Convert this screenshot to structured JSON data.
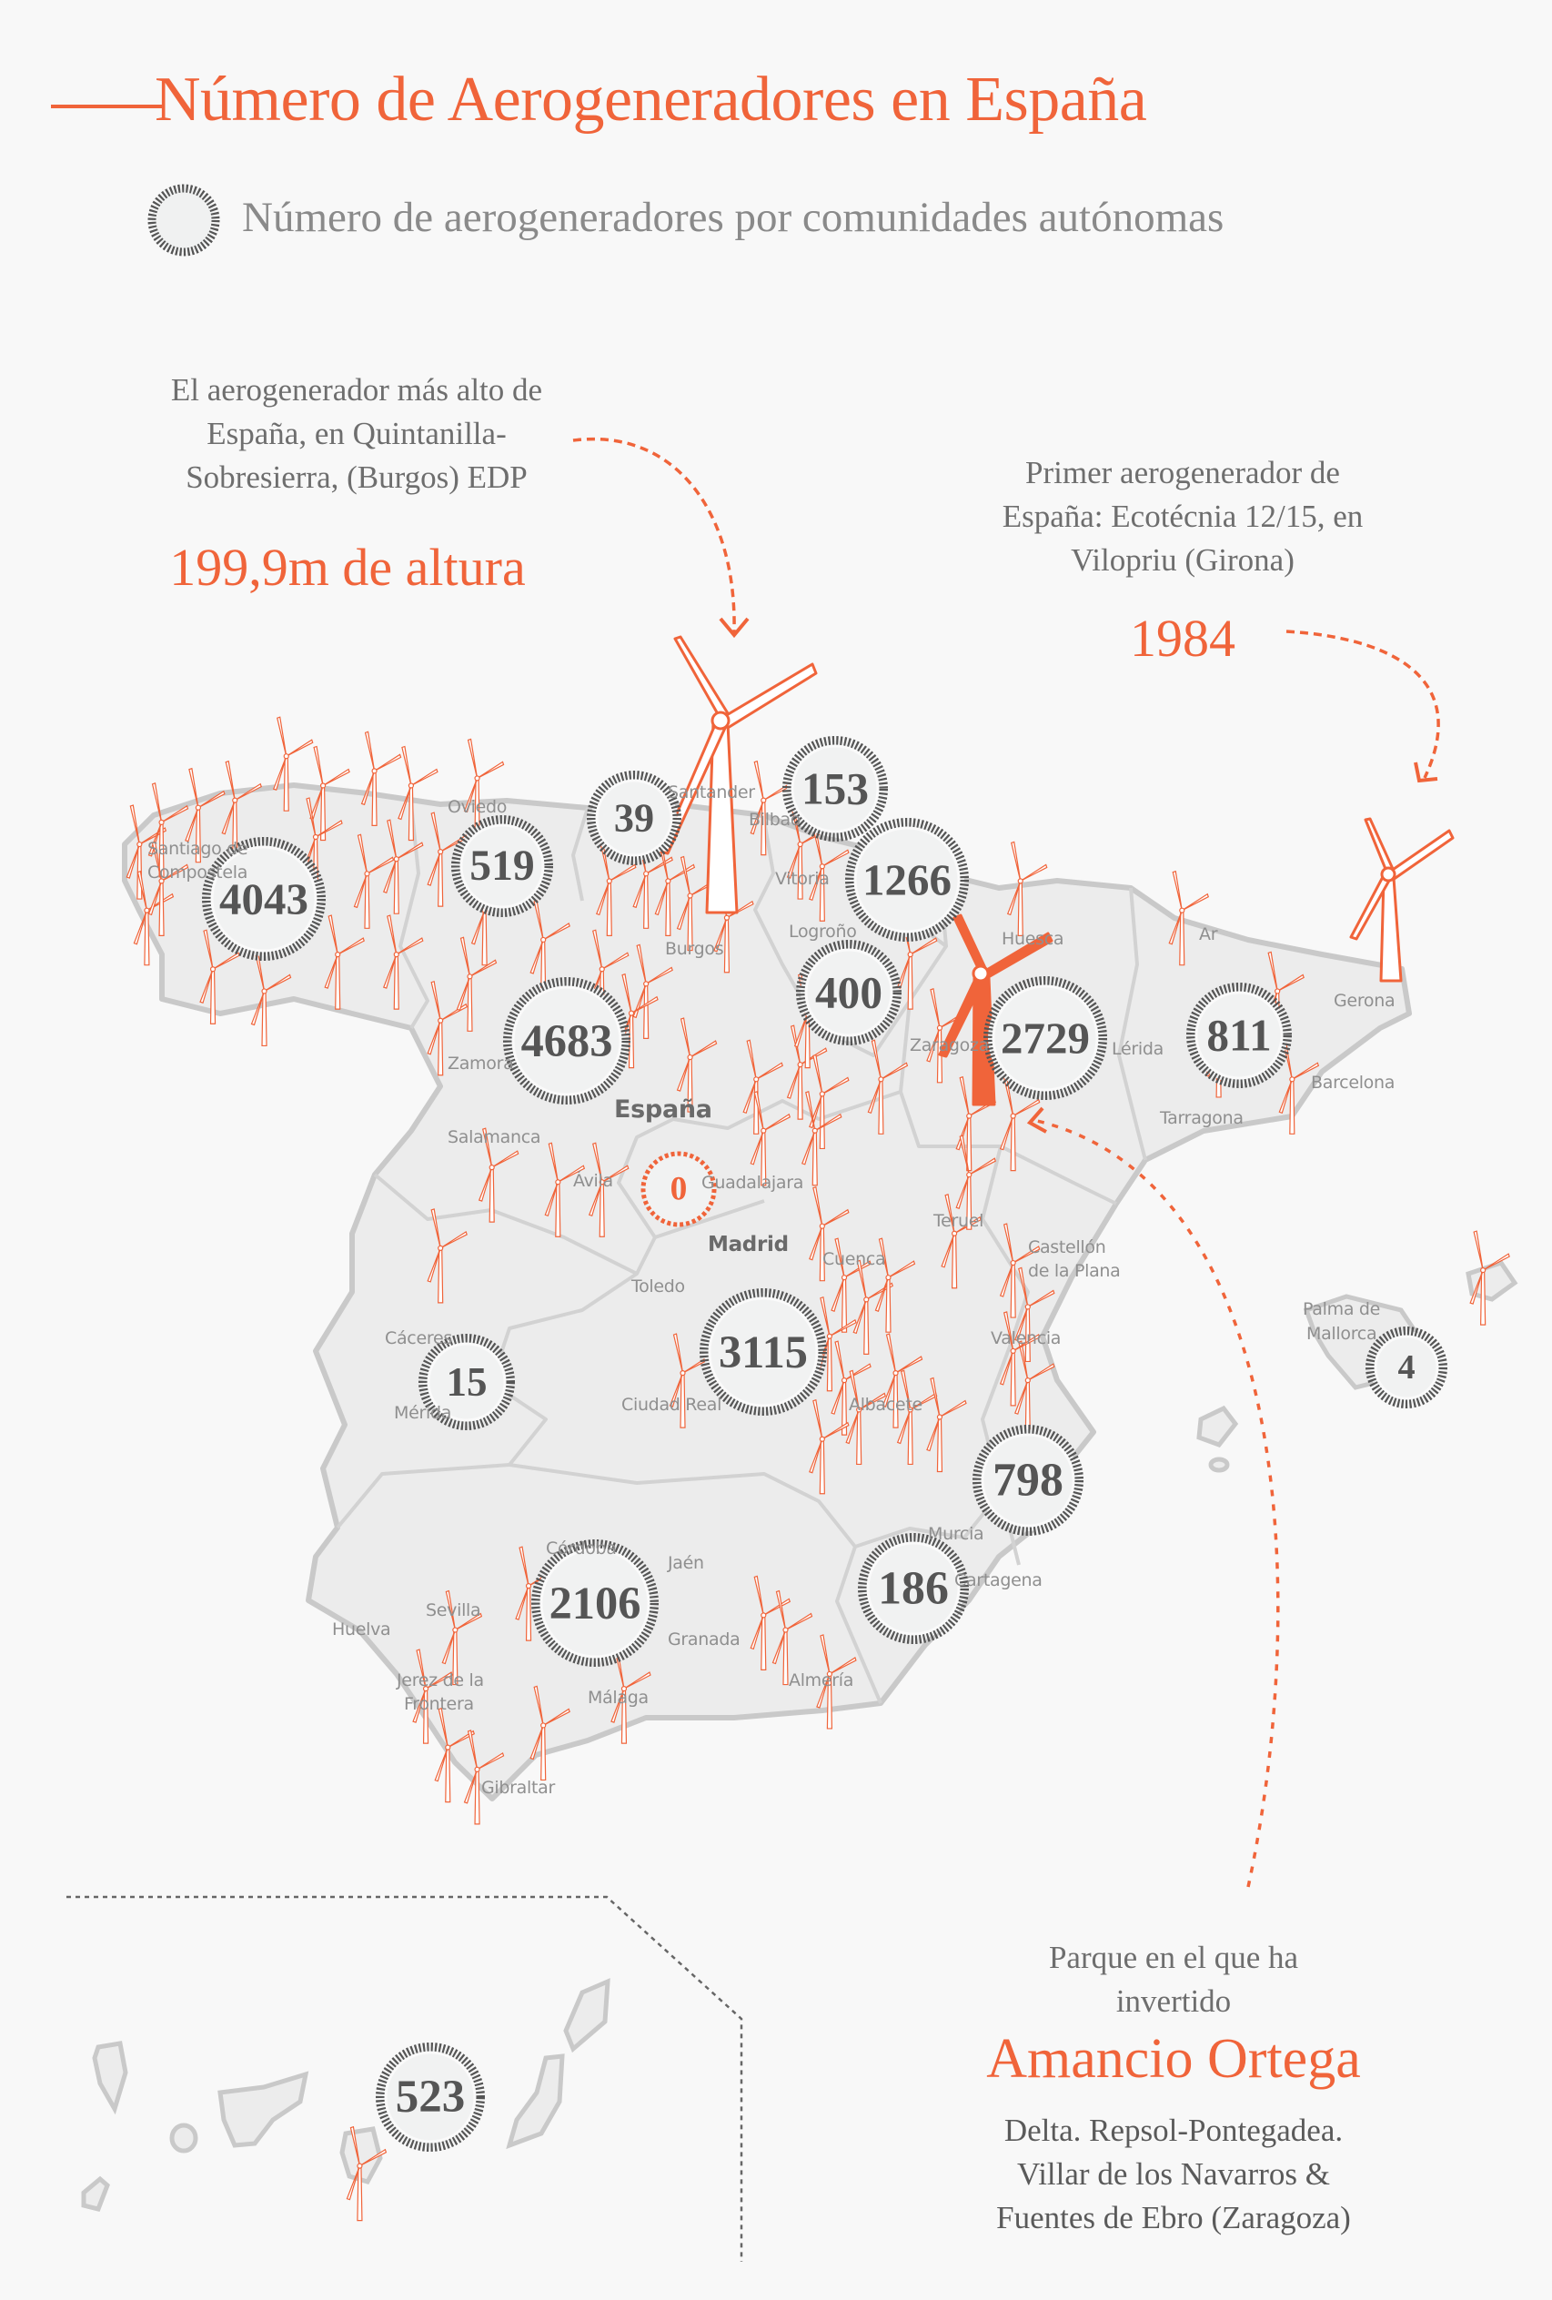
{
  "header": {
    "title": "Número de Aerogeneradores en España",
    "legend_label": "Número de aerogeneradores por comunidades autónomas",
    "legend_icon": "dashed-ring-icon"
  },
  "annotations": {
    "tallest": {
      "lines": [
        "El aerogenerador más alto de",
        "España, en Quintanilla-",
        "Sobresierra, (Burgos) EDP"
      ],
      "highlight": "199,9m de altura"
    },
    "first": {
      "lines": [
        "Primer aerogenerador de",
        "España: Ecotécnia 12/15, en",
        "Vilopriu (Girona)"
      ],
      "highlight": "1984"
    },
    "amancio": {
      "lines": [
        "Parque en el que ha",
        "invertido"
      ],
      "highlight": "Amancio Ortega",
      "detail": [
        "Delta. Repsol-Pontegadea.",
        "Villar de los Navarros &",
        "Fuentes de Ebro (Zaragoza)"
      ]
    }
  },
  "map": {
    "regions": [
      {
        "value": "4043"
      },
      {
        "value": "519"
      },
      {
        "value": "39"
      },
      {
        "value": "153"
      },
      {
        "value": "1266"
      },
      {
        "value": "400"
      },
      {
        "value": "4683"
      },
      {
        "value": "2729"
      },
      {
        "value": "811"
      },
      {
        "value": "0"
      },
      {
        "value": "15"
      },
      {
        "value": "3115"
      },
      {
        "value": "4"
      },
      {
        "value": "798"
      },
      {
        "value": "186"
      },
      {
        "value": "2106"
      },
      {
        "value": "523"
      }
    ],
    "cities": {
      "santiago1": "Santiago de",
      "santiago2": "Compostela",
      "oviedo": "Oviedo",
      "santander": "Santander",
      "bilbao": "Bilbao",
      "vitoria": "Vitoria",
      "logrono": "Logroño",
      "burgos": "Burgos",
      "huesca": "Huesca",
      "zaragoza": "Zaragoza",
      "lerida": "Lérida",
      "gerona": "Gerona",
      "barcelona": "Barcelona",
      "tarragona": "Tarragona",
      "andorra": "Ar",
      "zamora": "Zamora",
      "salamanca": "Salamanca",
      "espana": "España",
      "avila": "Ávila",
      "guadalajara": "Guadalajara",
      "madrid": "Madrid",
      "cuenca": "Cuenca",
      "teruel": "Teruel",
      "castellon1": "Castellón",
      "castellon2": "de la Plana",
      "toledo": "Toledo",
      "caceres": "Cáceres",
      "merida": "Mérida",
      "ciudadreal": "Ciudad Real",
      "valencia": "Valencia",
      "albacete": "Albacete",
      "palma1": "Palma de",
      "palma2": "Mallorca",
      "murcia": "Murcia",
      "cartagena": "Cartagena",
      "cordoba": "Córdoba",
      "jaen": "Jaén",
      "sevilla": "Sevilla",
      "huelva": "Huelva",
      "granada": "Granada",
      "almeria": "Almería",
      "jerez1": "Jerez de la",
      "jerez2": "Frontera",
      "malaga": "Málaga",
      "gibraltar": "Gibraltar"
    }
  },
  "colors": {
    "accent": "#f0643a",
    "ring": "#555555",
    "land": "#ececec",
    "border": "#cfcfcf",
    "text": "#6e6e6e"
  }
}
